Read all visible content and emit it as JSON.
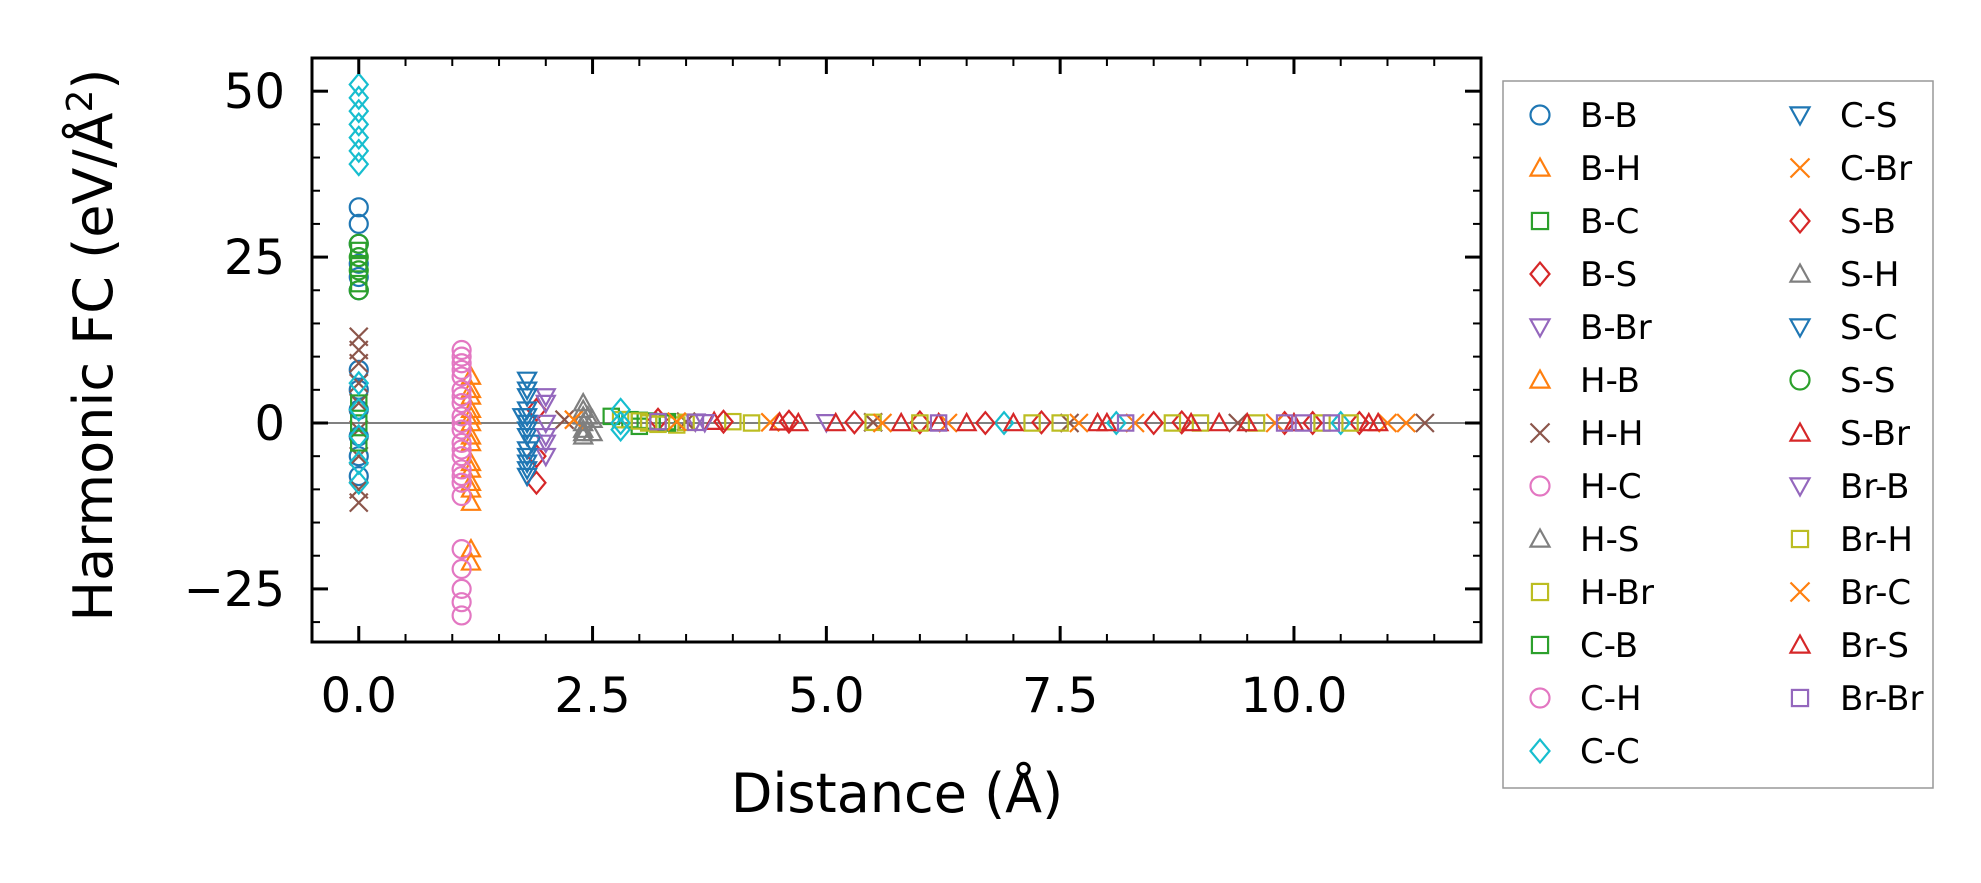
{
  "chart_data": {
    "type": "scatter",
    "title": "",
    "xlabel": "Distance (Å)",
    "ylabel": "Harmonic FC (eV/Å²)",
    "ylabel_main": "Harmonic FC (eV/Å",
    "ylabel_sup": "2",
    "ylabel_end": ")",
    "xlim": [
      -0.5,
      12.0
    ],
    "ylim": [
      -33,
      55
    ],
    "xticks": [
      0.0,
      2.5,
      5.0,
      7.5,
      10.0
    ],
    "xtick_labels": [
      "0.0",
      "2.5",
      "5.0",
      "7.5",
      "10.0"
    ],
    "yticks": [
      -25,
      0,
      25,
      50
    ],
    "ytick_labels": [
      "−25",
      "0",
      "25",
      "50"
    ],
    "zero_line": 0,
    "legend_position": "right",
    "legend_columns": 2,
    "series": [
      {
        "name": "B-B",
        "marker": "circle",
        "color": "#1f77b4",
        "points": [
          [
            0,
            32.5
          ],
          [
            0,
            30
          ],
          [
            0,
            27
          ],
          [
            0,
            24
          ],
          [
            0,
            22
          ],
          [
            0,
            20
          ],
          [
            0,
            8
          ],
          [
            0,
            5
          ],
          [
            0,
            2
          ],
          [
            0,
            -2
          ],
          [
            0,
            -5
          ],
          [
            0,
            -8
          ]
        ]
      },
      {
        "name": "B-H",
        "marker": "triangle-up",
        "color": "#ff7f0e",
        "points": [
          [
            1.2,
            5
          ],
          [
            1.2,
            2
          ],
          [
            1.2,
            0
          ],
          [
            1.2,
            -3
          ],
          [
            1.2,
            -6
          ],
          [
            1.2,
            -9
          ],
          [
            1.2,
            -12
          ],
          [
            1.2,
            -19
          ],
          [
            1.2,
            -21
          ]
        ]
      },
      {
        "name": "B-C",
        "marker": "square",
        "color": "#2ca02c",
        "points": [
          [
            2.7,
            1
          ],
          [
            2.9,
            0.5
          ],
          [
            3.0,
            -0.5
          ],
          [
            3.1,
            0.3
          ],
          [
            3.3,
            0.2
          ]
        ]
      },
      {
        "name": "B-S",
        "marker": "diamond",
        "color": "#d62728",
        "points": [
          [
            1.9,
            2
          ],
          [
            1.9,
            -5
          ],
          [
            1.9,
            -9
          ],
          [
            3.2,
            0.5
          ],
          [
            4.6,
            0.2
          ],
          [
            6.0,
            0.1
          ],
          [
            7.3,
            0.1
          ],
          [
            8.8,
            0.1
          ],
          [
            10.2,
            0
          ],
          [
            10.7,
            0
          ]
        ]
      },
      {
        "name": "B-Br",
        "marker": "triangle-down",
        "color": "#9467bd",
        "points": [
          [
            2.0,
            4
          ],
          [
            2.0,
            0
          ],
          [
            2.0,
            -3
          ],
          [
            2.0,
            -5
          ],
          [
            3.6,
            0.2
          ],
          [
            5.0,
            0.1
          ]
        ]
      },
      {
        "name": "H-B",
        "marker": "triangle-up",
        "color": "#ff7f0e",
        "points": [
          [
            1.2,
            7
          ],
          [
            1.2,
            4
          ],
          [
            1.2,
            1
          ],
          [
            1.2,
            -2
          ],
          [
            1.2,
            -7
          ],
          [
            1.2,
            -10
          ]
        ]
      },
      {
        "name": "H-H",
        "marker": "x",
        "color": "#8c564b",
        "points": [
          [
            0,
            13
          ],
          [
            0,
            11
          ],
          [
            0,
            9
          ],
          [
            0,
            6
          ],
          [
            0,
            3
          ],
          [
            0,
            -1
          ],
          [
            0,
            -5
          ],
          [
            0,
            -10
          ],
          [
            0,
            -12
          ],
          [
            2.2,
            0.5
          ],
          [
            3.5,
            0.2
          ],
          [
            5.5,
            0.1
          ],
          [
            7.6,
            0
          ],
          [
            9.4,
            0
          ],
          [
            11.4,
            0
          ]
        ]
      },
      {
        "name": "H-C",
        "marker": "circle",
        "color": "#e377c2",
        "points": [
          [
            1.1,
            11
          ],
          [
            1.1,
            9
          ],
          [
            1.1,
            7
          ],
          [
            1.1,
            5
          ],
          [
            1.1,
            3
          ],
          [
            1.1,
            1
          ],
          [
            1.1,
            -1
          ],
          [
            1.1,
            -3
          ],
          [
            1.1,
            -5
          ],
          [
            1.1,
            -7
          ],
          [
            1.1,
            -9
          ],
          [
            1.1,
            -11
          ]
        ]
      },
      {
        "name": "H-S",
        "marker": "triangle-up",
        "color": "#7f7f7f",
        "points": [
          [
            2.4,
            2
          ],
          [
            2.4,
            1
          ],
          [
            2.4,
            0
          ],
          [
            2.4,
            -1
          ],
          [
            2.4,
            -2
          ],
          [
            2.5,
            0.5
          ],
          [
            2.5,
            -1.5
          ]
        ]
      },
      {
        "name": "H-Br",
        "marker": "square",
        "color": "#bcbd22",
        "points": [
          [
            2.8,
            0.5
          ],
          [
            3.1,
            0
          ],
          [
            3.4,
            -0.3
          ],
          [
            4.0,
            0.2
          ],
          [
            5.5,
            0.1
          ],
          [
            7.2,
            0
          ],
          [
            9.0,
            0
          ],
          [
            10.3,
            0
          ]
        ]
      },
      {
        "name": "C-B",
        "marker": "square",
        "color": "#2ca02c",
        "points": [
          [
            0,
            26
          ],
          [
            0,
            24
          ],
          [
            0,
            21
          ],
          [
            0,
            3
          ],
          [
            0,
            0
          ],
          [
            0,
            -3
          ],
          [
            3.0,
            0.4
          ],
          [
            3.3,
            0
          ]
        ]
      },
      {
        "name": "C-H",
        "marker": "circle",
        "color": "#e377c2",
        "points": [
          [
            1.1,
            10
          ],
          [
            1.1,
            8
          ],
          [
            1.1,
            4
          ],
          [
            1.1,
            0
          ],
          [
            1.1,
            -4
          ],
          [
            1.1,
            -8
          ],
          [
            1.1,
            -19
          ],
          [
            1.1,
            -22
          ],
          [
            1.1,
            -25
          ],
          [
            1.1,
            -27
          ],
          [
            1.1,
            -29
          ]
        ]
      },
      {
        "name": "C-C",
        "marker": "diamond",
        "color": "#17becf",
        "points": [
          [
            0,
            51
          ],
          [
            0,
            49
          ],
          [
            0,
            47
          ],
          [
            0,
            45
          ],
          [
            0,
            43
          ],
          [
            0,
            41
          ],
          [
            0,
            39
          ],
          [
            0,
            6
          ],
          [
            0,
            2
          ],
          [
            0,
            -2
          ],
          [
            0,
            -6
          ],
          [
            0,
            -9
          ],
          [
            2.8,
            2
          ],
          [
            2.8,
            0
          ],
          [
            2.8,
            -1
          ],
          [
            6.9,
            0
          ],
          [
            8.1,
            0
          ],
          [
            10.5,
            0
          ]
        ]
      },
      {
        "name": "C-S",
        "marker": "triangle-down",
        "color": "#1f77b4",
        "points": [
          [
            1.8,
            6.5
          ],
          [
            1.8,
            4
          ],
          [
            1.8,
            2
          ],
          [
            1.8,
            0
          ],
          [
            1.8,
            -2
          ],
          [
            1.8,
            -4
          ],
          [
            1.8,
            -6
          ],
          [
            1.8,
            -8
          ],
          [
            1.75,
            1
          ],
          [
            1.85,
            -3
          ]
        ]
      },
      {
        "name": "C-Br",
        "marker": "x",
        "color": "#ff7f0e",
        "points": [
          [
            2.3,
            0.5
          ],
          [
            4.4,
            0.1
          ],
          [
            6.3,
            0
          ],
          [
            8.3,
            0
          ],
          [
            11.0,
            0
          ]
        ]
      },
      {
        "name": "S-B",
        "marker": "diamond",
        "color": "#d62728",
        "points": [
          [
            3.9,
            0.2
          ],
          [
            5.3,
            0.1
          ],
          [
            6.7,
            0
          ],
          [
            8.5,
            0
          ],
          [
            9.9,
            0
          ]
        ]
      },
      {
        "name": "S-H",
        "marker": "triangle-up",
        "color": "#7f7f7f",
        "points": [
          [
            2.4,
            3
          ],
          [
            2.4,
            -1.5
          ],
          [
            2.45,
            1
          ]
        ]
      },
      {
        "name": "S-C",
        "marker": "triangle-down",
        "color": "#1f77b4",
        "points": [
          [
            1.8,
            5
          ],
          [
            1.8,
            1
          ],
          [
            1.8,
            -1
          ],
          [
            1.8,
            -5
          ],
          [
            1.8,
            -7
          ]
        ]
      },
      {
        "name": "S-S",
        "marker": "circle",
        "color": "#2ca02c",
        "points": [
          [
            0,
            27
          ],
          [
            0,
            25
          ],
          [
            0,
            23
          ],
          [
            0,
            20
          ]
        ]
      },
      {
        "name": "S-Br",
        "marker": "triangle-up",
        "color": "#d62728",
        "points": [
          [
            3.8,
            0.2
          ],
          [
            4.5,
            0.1
          ],
          [
            5.1,
            0
          ],
          [
            5.8,
            0
          ],
          [
            6.2,
            0
          ],
          [
            7.0,
            0
          ],
          [
            7.9,
            0
          ],
          [
            8.9,
            0
          ],
          [
            9.2,
            0
          ],
          [
            10.0,
            0
          ],
          [
            10.8,
            0
          ]
        ]
      },
      {
        "name": "Br-B",
        "marker": "triangle-down",
        "color": "#9467bd",
        "points": [
          [
            2.0,
            3
          ],
          [
            2.0,
            -2
          ],
          [
            3.7,
            0.1
          ]
        ]
      },
      {
        "name": "Br-H",
        "marker": "square",
        "color": "#bcbd22",
        "points": [
          [
            3.0,
            0.3
          ],
          [
            3.2,
            -0.2
          ],
          [
            3.5,
            0.1
          ],
          [
            4.2,
            0
          ],
          [
            6.0,
            0
          ],
          [
            7.5,
            0
          ],
          [
            8.7,
            0
          ],
          [
            9.6,
            0
          ],
          [
            10.6,
            0
          ]
        ]
      },
      {
        "name": "Br-C",
        "marker": "x",
        "color": "#ff7f0e",
        "points": [
          [
            3.4,
            0.2
          ],
          [
            5.6,
            0
          ],
          [
            7.7,
            0
          ],
          [
            9.8,
            0
          ],
          [
            11.2,
            0
          ]
        ]
      },
      {
        "name": "Br-S",
        "marker": "triangle-up",
        "color": "#d62728",
        "points": [
          [
            4.7,
            0
          ],
          [
            6.5,
            0
          ],
          [
            8.0,
            0
          ],
          [
            9.5,
            0
          ],
          [
            10.9,
            0
          ]
        ]
      },
      {
        "name": "Br-Br",
        "marker": "square",
        "color": "#9467bd",
        "points": [
          [
            3.2,
            0.2
          ],
          [
            3.6,
            0.1
          ],
          [
            6.2,
            0
          ],
          [
            8.2,
            0
          ],
          [
            9.9,
            0
          ],
          [
            10.1,
            0
          ],
          [
            10.4,
            0
          ]
        ]
      }
    ]
  }
}
